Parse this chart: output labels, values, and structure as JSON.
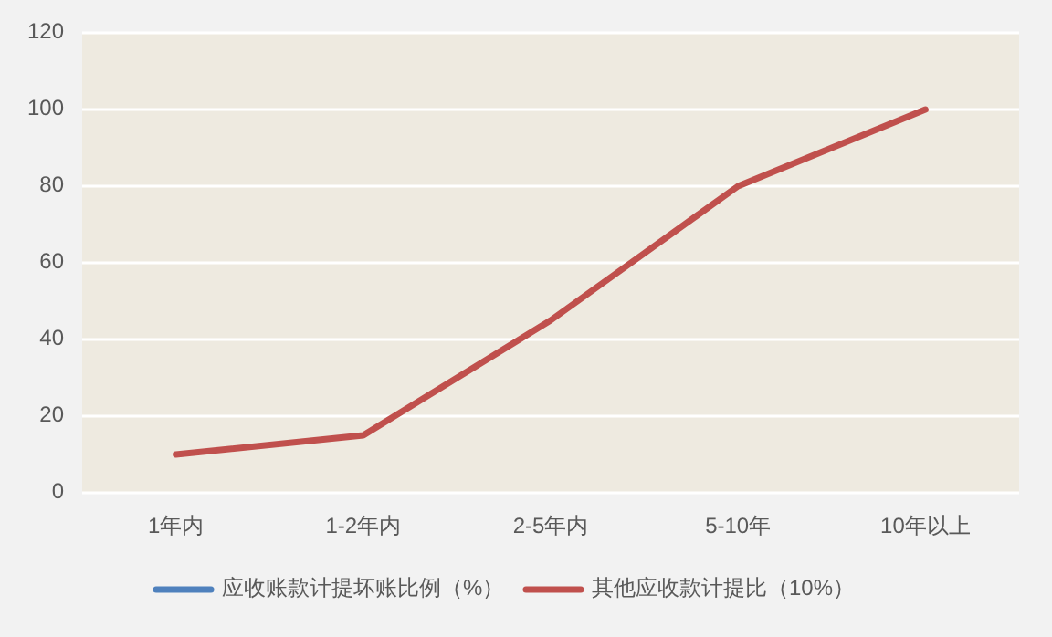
{
  "chart_data": {
    "type": "line",
    "categories": [
      "1年内",
      "1-2年内",
      "2-5年内",
      "5-10年",
      "10年以上"
    ],
    "series": [
      {
        "name": "应收账款计提坏账比例（%）",
        "color": "#4f81bd",
        "values": [
          null,
          null,
          null,
          null,
          null
        ]
      },
      {
        "name": "其他应收款计提比（10%）",
        "color": "#c0504d",
        "values": [
          10,
          15,
          45,
          80,
          100
        ]
      }
    ],
    "ylim": [
      0,
      120
    ],
    "yticks": [
      0,
      20,
      40,
      60,
      80,
      100,
      120
    ],
    "grid": "y",
    "legend": "bottom",
    "marker": "none",
    "line_style": "solid"
  }
}
